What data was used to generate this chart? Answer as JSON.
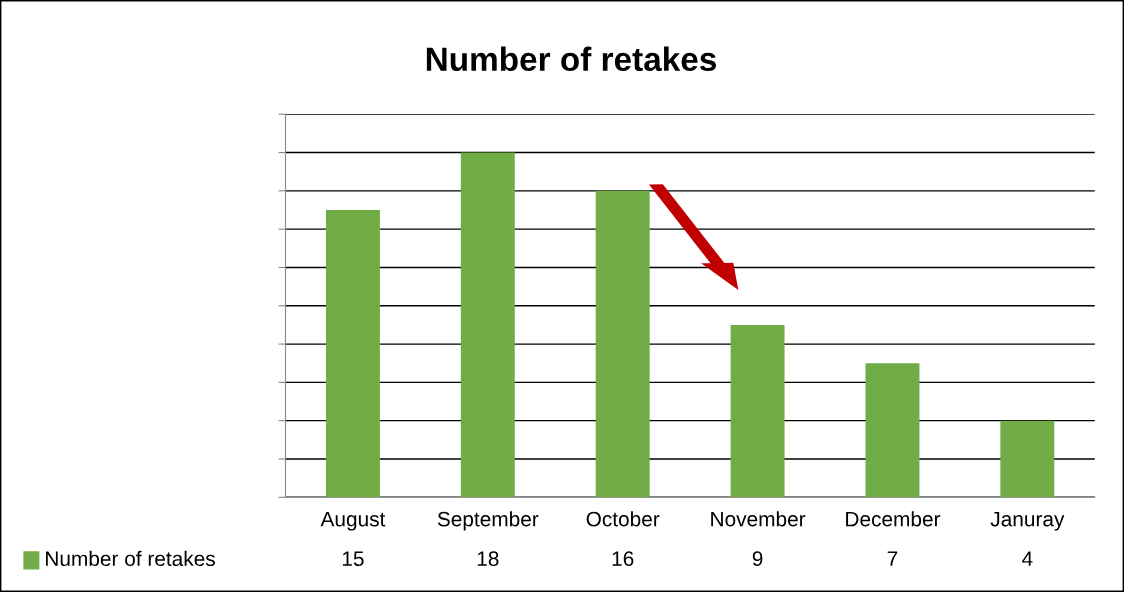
{
  "chart_data": {
    "type": "bar",
    "title": "Number of retakes",
    "categories": [
      "August",
      "September",
      "October",
      "November",
      "December",
      "Januray"
    ],
    "series": [
      {
        "name": "Number of retakes",
        "color": "#70ad47",
        "values": [
          15,
          18,
          16,
          9,
          7,
          4
        ]
      }
    ],
    "ylim": [
      0,
      20
    ],
    "yticks": [
      {
        "value": 0,
        "label": null
      },
      {
        "value": 2,
        "label": null
      },
      {
        "value": 4,
        "label": null
      },
      {
        "value": 6,
        "label": null
      },
      {
        "value": 8,
        "label": null
      },
      {
        "value": 10,
        "label": null
      },
      {
        "value": 12,
        "label": null
      },
      {
        "value": 14,
        "label": null
      },
      {
        "value": 16,
        "label": null
      },
      {
        "value": 18,
        "label": null
      },
      {
        "value": 20,
        "label": null
      }
    ],
    "grid": "y",
    "data_labels": true,
    "legend": "bottom left",
    "tick_labels": "x"
  }
}
